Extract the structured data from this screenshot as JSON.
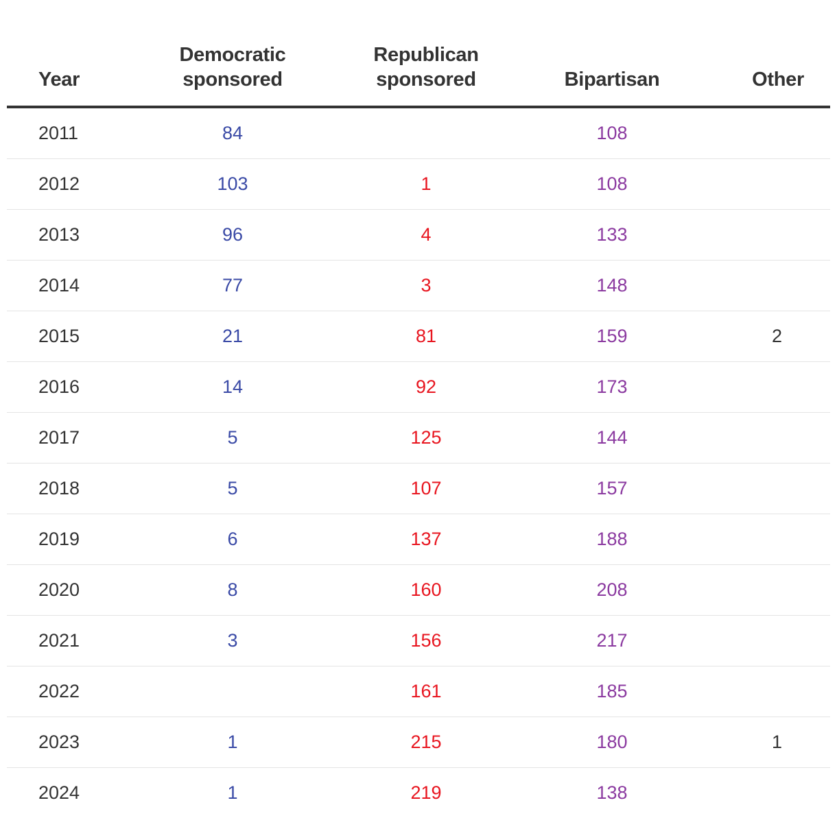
{
  "chart_data": {
    "type": "table",
    "columns": [
      "Year",
      "Democratic sponsored",
      "Republican sponsored",
      "Bipartisan",
      "Other"
    ],
    "header_lines": [
      [
        "Year"
      ],
      [
        "Democratic",
        "sponsored"
      ],
      [
        "Republican",
        "sponsored"
      ],
      [
        "Bipartisan"
      ],
      [
        "Other"
      ]
    ],
    "rows": [
      {
        "year": "2011",
        "democratic": "84",
        "republican": "",
        "bipartisan": "108",
        "other": ""
      },
      {
        "year": "2012",
        "democratic": "103",
        "republican": "1",
        "bipartisan": "108",
        "other": ""
      },
      {
        "year": "2013",
        "democratic": "96",
        "republican": "4",
        "bipartisan": "133",
        "other": ""
      },
      {
        "year": "2014",
        "democratic": "77",
        "republican": "3",
        "bipartisan": "148",
        "other": ""
      },
      {
        "year": "2015",
        "democratic": "21",
        "republican": "81",
        "bipartisan": "159",
        "other": "2"
      },
      {
        "year": "2016",
        "democratic": "14",
        "republican": "92",
        "bipartisan": "173",
        "other": ""
      },
      {
        "year": "2017",
        "democratic": "5",
        "republican": "125",
        "bipartisan": "144",
        "other": ""
      },
      {
        "year": "2018",
        "democratic": "5",
        "republican": "107",
        "bipartisan": "157",
        "other": ""
      },
      {
        "year": "2019",
        "democratic": "6",
        "republican": "137",
        "bipartisan": "188",
        "other": ""
      },
      {
        "year": "2020",
        "democratic": "8",
        "republican": "160",
        "bipartisan": "208",
        "other": ""
      },
      {
        "year": "2021",
        "democratic": "3",
        "republican": "156",
        "bipartisan": "217",
        "other": ""
      },
      {
        "year": "2022",
        "democratic": "",
        "republican": "161",
        "bipartisan": "185",
        "other": ""
      },
      {
        "year": "2023",
        "democratic": "1",
        "republican": "215",
        "bipartisan": "180",
        "other": "1"
      },
      {
        "year": "2024",
        "democratic": "1",
        "republican": "219",
        "bipartisan": "138",
        "other": ""
      }
    ],
    "colors": {
      "democratic": "#3a4aa6",
      "republican": "#e8151f",
      "bipartisan": "#8b3aa0",
      "other": "#333333",
      "year": "#333333",
      "header": "#333333",
      "row_divider": "#e4e4e4"
    }
  }
}
